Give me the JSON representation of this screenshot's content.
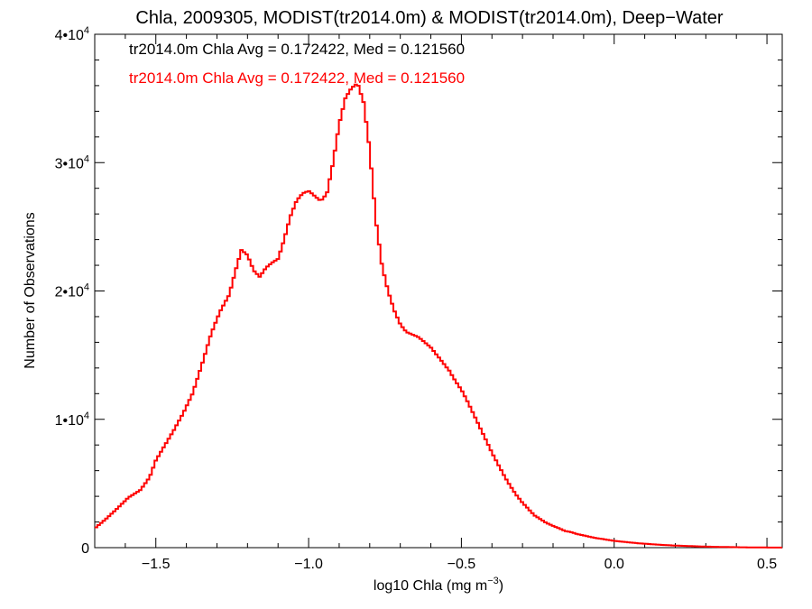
{
  "chart_data": {
    "type": "line",
    "title": "Chla, 2009305, MODIST(tr2014.0m) & MODIST(tr2014.0m), Deep−Water",
    "xlabel": "log10 Chla (mg m",
    "xlabel_sup": "−3",
    "xlabel_end": ")",
    "ylabel": "Number of Observations",
    "xlim": [
      -1.7,
      0.55
    ],
    "ylim": [
      0,
      40000
    ],
    "x_ticks": [
      {
        "value": -1.5,
        "label": "−1.5"
      },
      {
        "value": -1.0,
        "label": "−1.0"
      },
      {
        "value": -0.5,
        "label": "−0.5"
      },
      {
        "value": 0.0,
        "label": "0.0"
      },
      {
        "value": 0.5,
        "label": "0.5"
      }
    ],
    "y_ticks": [
      {
        "value": 0,
        "base": "0",
        "exp": ""
      },
      {
        "value": 10000,
        "base": "1•10",
        "exp": "4"
      },
      {
        "value": 20000,
        "base": "2•10",
        "exp": "4"
      },
      {
        "value": 30000,
        "base": "3•10",
        "exp": "4"
      },
      {
        "value": 40000,
        "base": "4•10",
        "exp": "4"
      }
    ],
    "annotations": [
      {
        "text": "tr2014.0m Chla Avg = 0.172422, Med = 0.121560",
        "color": "#000000"
      },
      {
        "text": "tr2014.0m Chla Avg = 0.172422, Med = 0.121560",
        "color": "#ff0000"
      }
    ],
    "series": [
      {
        "color": "#ff0000",
        "style": "step",
        "points": [
          [
            -1.7,
            1500
          ],
          [
            -1.66,
            2300
          ],
          [
            -1.62,
            3200
          ],
          [
            -1.59,
            3900
          ],
          [
            -1.55,
            4500
          ],
          [
            -1.52,
            5500
          ],
          [
            -1.5,
            6800
          ],
          [
            -1.47,
            8000
          ],
          [
            -1.44,
            9200
          ],
          [
            -1.41,
            10500
          ],
          [
            -1.38,
            12000
          ],
          [
            -1.35,
            14200
          ],
          [
            -1.32,
            16600
          ],
          [
            -1.29,
            18400
          ],
          [
            -1.26,
            19700
          ],
          [
            -1.24,
            21500
          ],
          [
            -1.22,
            23200
          ],
          [
            -1.2,
            22800
          ],
          [
            -1.18,
            21600
          ],
          [
            -1.16,
            21100
          ],
          [
            -1.14,
            21800
          ],
          [
            -1.12,
            22200
          ],
          [
            -1.1,
            22500
          ],
          [
            -1.08,
            24000
          ],
          [
            -1.06,
            25800
          ],
          [
            -1.04,
            27000
          ],
          [
            -1.02,
            27600
          ],
          [
            -1.0,
            27800
          ],
          [
            -0.98,
            27400
          ],
          [
            -0.96,
            27000
          ],
          [
            -0.94,
            27600
          ],
          [
            -0.92,
            30000
          ],
          [
            -0.9,
            33000
          ],
          [
            -0.88,
            35000
          ],
          [
            -0.86,
            35800
          ],
          [
            -0.84,
            36200
          ],
          [
            -0.82,
            34700
          ],
          [
            -0.8,
            31000
          ],
          [
            -0.78,
            25500
          ],
          [
            -0.76,
            22000
          ],
          [
            -0.74,
            20000
          ],
          [
            -0.72,
            18500
          ],
          [
            -0.7,
            17400
          ],
          [
            -0.68,
            16800
          ],
          [
            -0.66,
            16600
          ],
          [
            -0.64,
            16400
          ],
          [
            -0.62,
            16000
          ],
          [
            -0.6,
            15600
          ],
          [
            -0.58,
            15000
          ],
          [
            -0.56,
            14400
          ],
          [
            -0.54,
            13800
          ],
          [
            -0.52,
            13000
          ],
          [
            -0.5,
            12300
          ],
          [
            -0.48,
            11400
          ],
          [
            -0.46,
            10400
          ],
          [
            -0.44,
            9400
          ],
          [
            -0.42,
            8400
          ],
          [
            -0.4,
            7400
          ],
          [
            -0.38,
            6500
          ],
          [
            -0.36,
            5600
          ],
          [
            -0.34,
            4800
          ],
          [
            -0.32,
            4100
          ],
          [
            -0.3,
            3500
          ],
          [
            -0.28,
            3000
          ],
          [
            -0.26,
            2500
          ],
          [
            -0.24,
            2200
          ],
          [
            -0.22,
            1900
          ],
          [
            -0.2,
            1700
          ],
          [
            -0.18,
            1500
          ],
          [
            -0.16,
            1300
          ],
          [
            -0.14,
            1200
          ],
          [
            -0.12,
            1050
          ],
          [
            -0.1,
            950
          ],
          [
            -0.08,
            850
          ],
          [
            -0.06,
            750
          ],
          [
            -0.04,
            680
          ],
          [
            -0.02,
            600
          ],
          [
            0.0,
            530
          ],
          [
            0.04,
            430
          ],
          [
            0.08,
            340
          ],
          [
            0.12,
            270
          ],
          [
            0.16,
            210
          ],
          [
            0.2,
            160
          ],
          [
            0.25,
            120
          ],
          [
            0.3,
            80
          ],
          [
            0.35,
            55
          ],
          [
            0.4,
            35
          ],
          [
            0.45,
            20
          ],
          [
            0.5,
            10
          ],
          [
            0.55,
            5
          ]
        ]
      }
    ]
  }
}
